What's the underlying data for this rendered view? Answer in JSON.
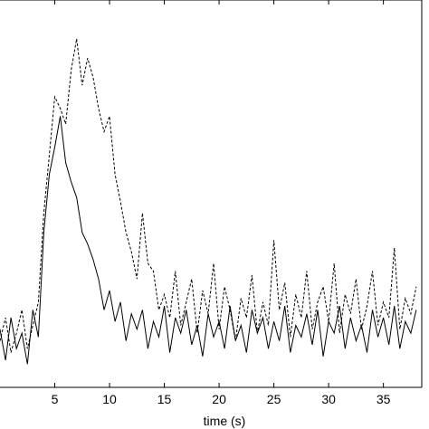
{
  "chart_data": {
    "type": "line",
    "title": "",
    "xlabel": "time (s)",
    "ylabel": "",
    "xlim": [
      0,
      38.5
    ],
    "ylim": [
      0,
      1
    ],
    "xticks": [
      5,
      10,
      15,
      20,
      25,
      30,
      35
    ],
    "tick_labels": [
      "5",
      "10",
      "15",
      "20",
      "25",
      "30",
      "35"
    ],
    "grid": false,
    "legend": "none",
    "series": [
      {
        "style": "solid",
        "color": "#000000",
        "x": [
          0,
          0.5,
          1,
          1.5,
          2,
          2.5,
          3,
          3.5,
          4,
          4.5,
          5,
          5.5,
          6,
          6.5,
          7,
          7.5,
          8,
          8.5,
          9,
          9.5,
          10,
          10.5,
          11,
          11.5,
          12,
          12.5,
          13,
          13.5,
          14,
          14.5,
          15,
          15.5,
          16,
          16.5,
          17,
          17.5,
          18,
          18.5,
          19,
          19.5,
          20,
          20.5,
          21,
          21.5,
          22,
          22.5,
          23,
          23.5,
          24,
          24.5,
          25,
          25.5,
          26,
          26.5,
          27,
          27.5,
          28,
          28.5,
          29,
          29.5,
          30,
          30.5,
          31,
          31.5,
          32,
          32.5,
          33,
          33.5,
          34,
          34.5,
          35,
          35.5,
          36,
          36.5,
          37,
          37.5,
          38
        ],
        "y": [
          0.15,
          0.07,
          0.18,
          0.1,
          0.14,
          0.06,
          0.2,
          0.13,
          0.4,
          0.55,
          0.62,
          0.7,
          0.58,
          0.53,
          0.49,
          0.4,
          0.37,
          0.33,
          0.28,
          0.2,
          0.25,
          0.17,
          0.22,
          0.12,
          0.19,
          0.15,
          0.2,
          0.1,
          0.17,
          0.13,
          0.21,
          0.09,
          0.18,
          0.14,
          0.2,
          0.11,
          0.16,
          0.08,
          0.19,
          0.13,
          0.17,
          0.1,
          0.21,
          0.12,
          0.16,
          0.09,
          0.2,
          0.14,
          0.18,
          0.1,
          0.17,
          0.12,
          0.21,
          0.09,
          0.16,
          0.13,
          0.19,
          0.11,
          0.2,
          0.08,
          0.17,
          0.14,
          0.21,
          0.1,
          0.18,
          0.12,
          0.16,
          0.09,
          0.2,
          0.13,
          0.18,
          0.11,
          0.21,
          0.1,
          0.17,
          0.14,
          0.2
        ]
      },
      {
        "style": "dashed",
        "color": "#000000",
        "x": [
          0,
          0.5,
          1,
          1.5,
          2,
          2.5,
          3,
          3.5,
          4,
          4.5,
          5,
          5.5,
          6,
          6.5,
          7,
          7.5,
          8,
          8.5,
          9,
          9.5,
          10,
          10.5,
          11,
          11.5,
          12,
          12.5,
          13,
          13.5,
          14,
          14.5,
          15,
          15.5,
          16,
          16.5,
          17,
          17.5,
          18,
          18.5,
          19,
          19.5,
          20,
          20.5,
          21,
          21.5,
          22,
          22.5,
          23,
          23.5,
          24,
          24.5,
          25,
          25.5,
          26,
          26.5,
          27,
          27.5,
          28,
          28.5,
          29,
          29.5,
          30,
          30.5,
          31,
          31.5,
          32,
          32.5,
          33,
          33.5,
          34,
          34.5,
          35,
          35.5,
          36,
          36.5,
          37,
          37.5,
          38
        ],
        "y": [
          0.12,
          0.18,
          0.09,
          0.14,
          0.2,
          0.1,
          0.16,
          0.22,
          0.45,
          0.6,
          0.75,
          0.72,
          0.68,
          0.82,
          0.9,
          0.78,
          0.85,
          0.8,
          0.72,
          0.66,
          0.7,
          0.55,
          0.48,
          0.4,
          0.35,
          0.28,
          0.45,
          0.32,
          0.3,
          0.2,
          0.24,
          0.18,
          0.3,
          0.16,
          0.22,
          0.28,
          0.14,
          0.25,
          0.19,
          0.32,
          0.15,
          0.26,
          0.2,
          0.12,
          0.23,
          0.18,
          0.29,
          0.14,
          0.22,
          0.16,
          0.38,
          0.2,
          0.27,
          0.13,
          0.24,
          0.18,
          0.3,
          0.15,
          0.22,
          0.26,
          0.17,
          0.32,
          0.14,
          0.24,
          0.19,
          0.28,
          0.15,
          0.21,
          0.3,
          0.16,
          0.22,
          0.18,
          0.36,
          0.15,
          0.23,
          0.19,
          0.26
        ]
      }
    ]
  }
}
